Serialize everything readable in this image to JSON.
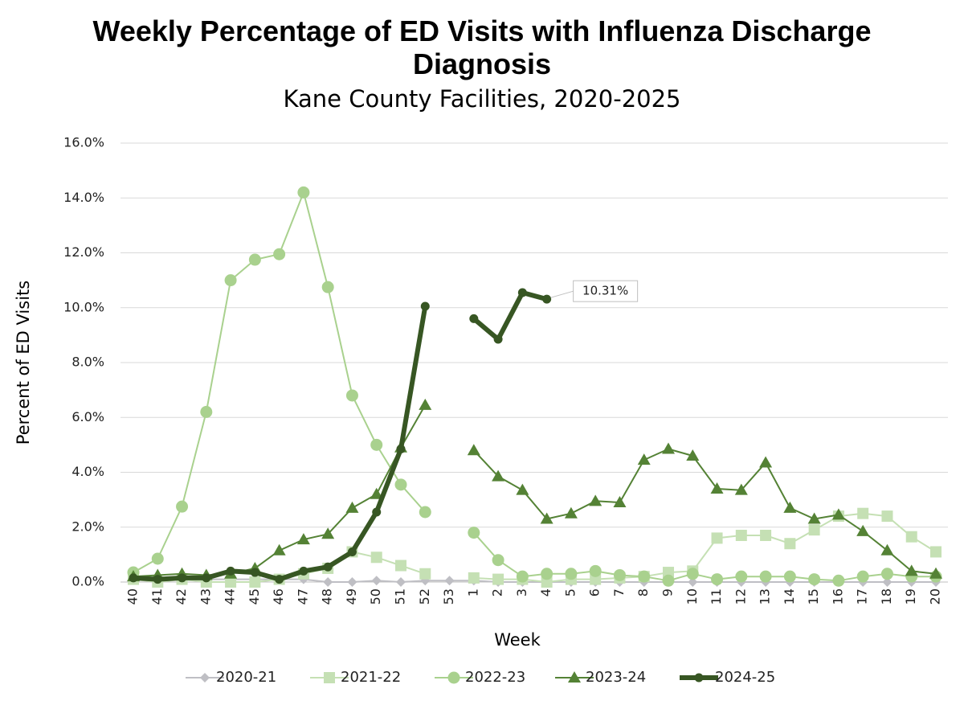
{
  "chart_data": {
    "type": "line",
    "title": "Weekly Percentage of ED Visits with Influenza Discharge Diagnosis",
    "subtitle": "Kane County Facilities, 2020-2025",
    "x_label": "Week",
    "y_label": "Percent of ED Visits",
    "categories": [
      40,
      41,
      42,
      43,
      44,
      45,
      46,
      47,
      48,
      49,
      50,
      51,
      52,
      53,
      1,
      2,
      3,
      4,
      5,
      6,
      7,
      8,
      9,
      10,
      11,
      12,
      13,
      14,
      15,
      16,
      17,
      18,
      19,
      20
    ],
    "ylim": [
      0,
      16
    ],
    "yticks": [
      {
        "value": 0,
        "label": "0.0%"
      },
      {
        "value": 2,
        "label": "2.0%"
      },
      {
        "value": 4,
        "label": "4.0%"
      },
      {
        "value": 6,
        "label": "6.0%"
      },
      {
        "value": 8,
        "label": "8.0%"
      },
      {
        "value": 10,
        "label": "10.0%"
      },
      {
        "value": 12,
        "label": "12.0%"
      },
      {
        "value": 14,
        "label": "14.0%"
      },
      {
        "value": 16,
        "label": "16.0%"
      }
    ],
    "grid": true,
    "legend": "bottom",
    "series": [
      {
        "name": "2020-21",
        "color": "#bfbfc4",
        "marker": "diamond",
        "values": [
          0.1,
          0.1,
          0.1,
          0.1,
          0.1,
          0.1,
          0.1,
          0.1,
          0.0,
          0.0,
          0.05,
          0.0,
          0.05,
          0.05,
          0.05,
          0.0,
          0.0,
          0.0,
          0.0,
          0.0,
          0.0,
          0.0,
          0.0,
          0.0,
          0.0,
          0.0,
          0.0,
          0.0,
          0.0,
          0.0,
          0.0,
          0.0,
          0.0,
          0.0
        ]
      },
      {
        "name": "2021-22",
        "color": "#c5e0b4",
        "marker": "square",
        "values": [
          0.1,
          0.0,
          0.1,
          0.0,
          0.0,
          0.0,
          0.1,
          0.3,
          0.5,
          1.1,
          0.9,
          0.6,
          0.3,
          null,
          0.15,
          0.1,
          0.1,
          0.0,
          0.1,
          0.1,
          0.15,
          0.2,
          0.35,
          0.4,
          1.6,
          1.7,
          1.7,
          1.4,
          1.9,
          2.4,
          2.5,
          2.4,
          1.65,
          1.1
        ]
      },
      {
        "name": "2022-23",
        "color": "#a9d18e",
        "marker": "circle",
        "values": [
          0.35,
          0.85,
          2.75,
          6.2,
          11.0,
          11.75,
          11.95,
          14.2,
          10.75,
          6.8,
          5.0,
          3.55,
          2.55,
          null,
          1.8,
          0.8,
          0.2,
          0.3,
          0.3,
          0.4,
          0.25,
          0.2,
          0.05,
          0.3,
          0.1,
          0.2,
          0.2,
          0.2,
          0.1,
          0.05,
          0.2,
          0.3,
          0.2,
          0.2
        ]
      },
      {
        "name": "2023-24",
        "color": "#548235",
        "marker": "triangle",
        "values": [
          0.2,
          0.25,
          0.3,
          0.25,
          0.3,
          0.5,
          1.15,
          1.55,
          1.75,
          2.7,
          3.2,
          4.9,
          6.45,
          null,
          4.8,
          3.85,
          3.35,
          2.3,
          2.5,
          2.95,
          2.9,
          4.45,
          4.85,
          4.6,
          3.4,
          3.35,
          4.35,
          2.7,
          2.3,
          2.45,
          1.85,
          1.15,
          0.4,
          0.3
        ]
      },
      {
        "name": "2024-25",
        "color": "#375623",
        "marker": "dot",
        "values": [
          0.15,
          0.1,
          0.15,
          0.15,
          0.4,
          0.35,
          0.1,
          0.4,
          0.55,
          1.1,
          2.55,
          4.85,
          10.05,
          null,
          9.6,
          8.85,
          10.55,
          10.31,
          null,
          null,
          null,
          null,
          null,
          null,
          null,
          null,
          null,
          null,
          null,
          null,
          null,
          null,
          null,
          null
        ],
        "value_labels": [
          null,
          null,
          null,
          null,
          null,
          null,
          null,
          null,
          null,
          null,
          null,
          null,
          null,
          null,
          null,
          null,
          null,
          "10.31%",
          null,
          null,
          null,
          null,
          null,
          null,
          null,
          null,
          null,
          null,
          null,
          null,
          null,
          null,
          null,
          null
        ]
      }
    ]
  }
}
